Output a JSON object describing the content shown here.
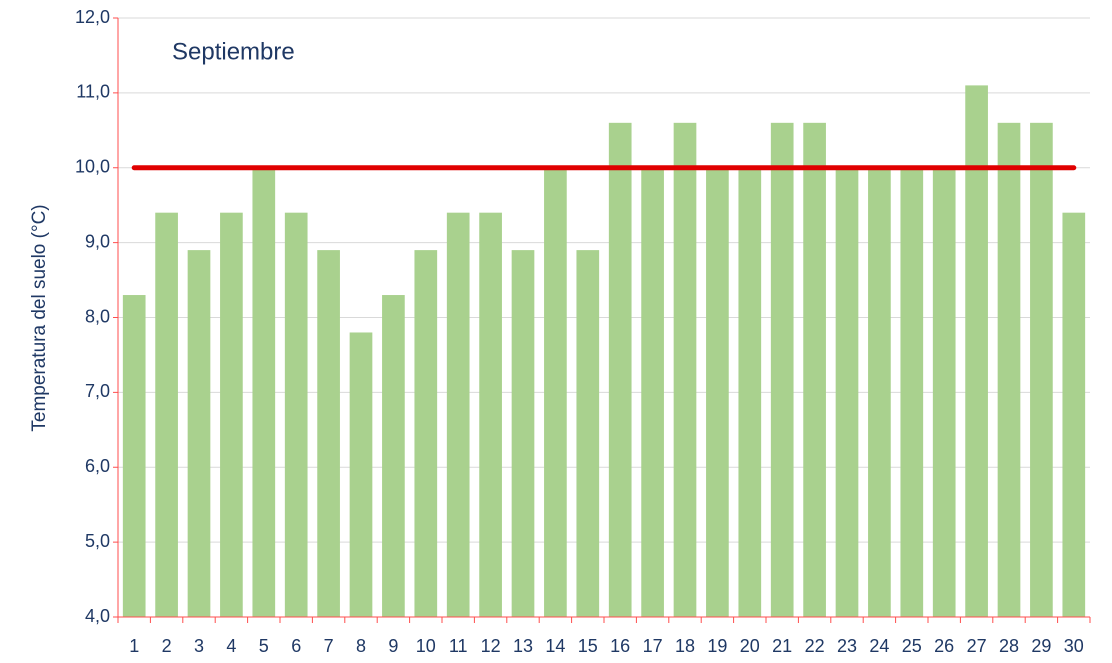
{
  "chart_data": {
    "type": "bar",
    "title": "Septiembre",
    "y_label": "Temperatura del suelo (°C)",
    "categories": [
      "1",
      "2",
      "3",
      "4",
      "5",
      "6",
      "7",
      "8",
      "9",
      "10",
      "11",
      "12",
      "13",
      "14",
      "15",
      "16",
      "17",
      "18",
      "19",
      "20",
      "21",
      "22",
      "23",
      "24",
      "25",
      "26",
      "27",
      "28",
      "29",
      "30"
    ],
    "values": [
      8.3,
      9.4,
      8.9,
      9.4,
      10.0,
      9.4,
      8.9,
      7.8,
      8.3,
      8.9,
      9.4,
      9.4,
      8.9,
      10.0,
      8.9,
      10.6,
      10.0,
      10.6,
      10.0,
      10.0,
      10.6,
      10.6,
      10.0,
      10.0,
      10.0,
      10.0,
      11.1,
      10.6,
      10.6,
      9.4
    ],
    "color": "#a9d18e",
    "reference_line": {
      "value": 10,
      "color": "#e00000"
    },
    "axis_color": "#ff4d4d",
    "ylim": [
      4,
      12
    ],
    "yticks": [
      {
        "value": 4,
        "label": "4,0"
      },
      {
        "value": 5,
        "label": "5,0"
      },
      {
        "value": 6,
        "label": "6,0"
      },
      {
        "value": 7,
        "label": "7,0"
      },
      {
        "value": 8,
        "label": "8,0"
      },
      {
        "value": 9,
        "label": "9,0"
      },
      {
        "value": 10,
        "label": "10,0"
      },
      {
        "value": 11,
        "label": "11,0"
      },
      {
        "value": 12,
        "label": "12,0"
      }
    ],
    "grid": true
  }
}
